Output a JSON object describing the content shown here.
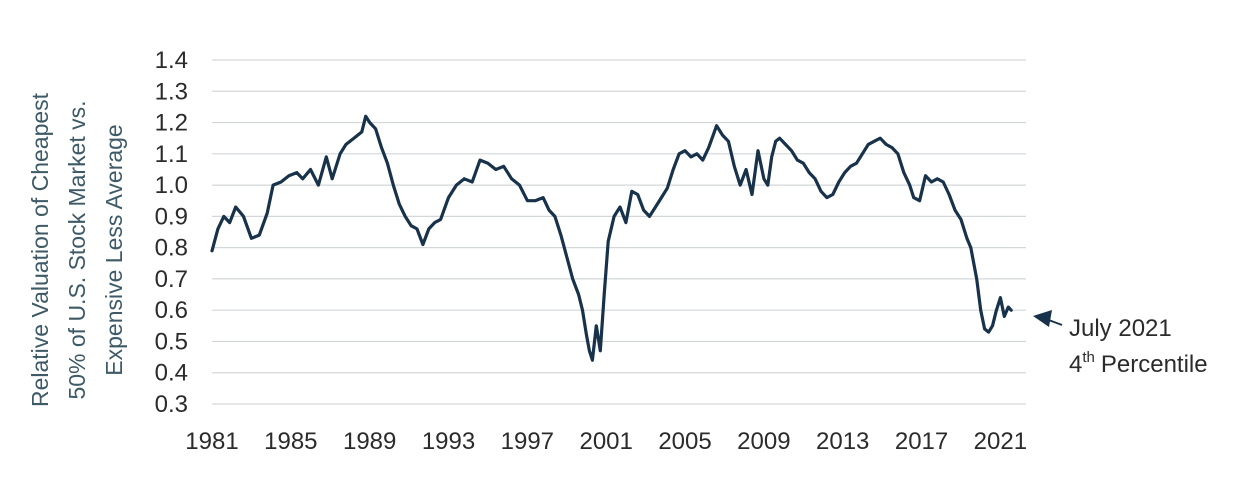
{
  "chart_data": {
    "type": "line",
    "ylabel_lines": [
      "Relative Valuation of Cheapest",
      "50% of U.S. Stock Market vs.",
      "Expensive Less Average"
    ],
    "ylim": [
      0.3,
      1.4
    ],
    "yticks": [
      0.3,
      0.4,
      0.5,
      0.6,
      0.7,
      0.8,
      0.9,
      1.0,
      1.1,
      1.2,
      1.3,
      1.4
    ],
    "ytick_labels": [
      "0.3",
      "0.4",
      "0.5",
      "0.6",
      "0.7",
      "0.8",
      "0.9",
      "1.0",
      "1.1",
      "1.2",
      "1.3",
      "1.4"
    ],
    "xlim": [
      1981,
      2022.3
    ],
    "xticks": [
      1981,
      1985,
      1989,
      1993,
      1997,
      2001,
      2005,
      2009,
      2013,
      2017,
      2021
    ],
    "xtick_labels": [
      "1981",
      "1985",
      "1989",
      "1993",
      "1997",
      "2001",
      "2005",
      "2009",
      "2013",
      "2017",
      "2021"
    ],
    "grid": true,
    "line_color": "#17324a",
    "series": [
      {
        "x": [
          1981.0,
          1981.3,
          1981.6,
          1981.9,
          1982.2,
          1982.6,
          1983.0,
          1983.4,
          1983.8,
          1984.1,
          1984.5,
          1984.9,
          1985.3,
          1985.6,
          1986.0,
          1986.4,
          1986.8,
          1987.1,
          1987.5,
          1987.8,
          1988.2,
          1988.6,
          1988.8,
          1989.0,
          1989.3,
          1989.6,
          1989.9,
          1990.2,
          1990.5,
          1990.8,
          1991.1,
          1991.4,
          1991.7,
          1992.0,
          1992.3,
          1992.6,
          1993.0,
          1993.4,
          1993.8,
          1994.2,
          1994.6,
          1995.0,
          1995.4,
          1995.8,
          1996.2,
          1996.6,
          1997.0,
          1997.4,
          1997.8,
          1998.1,
          1998.4,
          1998.7,
          1999.0,
          1999.3,
          1999.6,
          1999.8,
          2000.0,
          2000.15,
          2000.3,
          2000.5,
          2000.7,
          2000.9,
          2001.1,
          2001.4,
          2001.7,
          2002.0,
          2002.3,
          2002.6,
          2002.9,
          2003.2,
          2003.5,
          2003.8,
          2004.1,
          2004.4,
          2004.7,
          2005.0,
          2005.3,
          2005.6,
          2005.9,
          2006.2,
          2006.6,
          2006.9,
          2007.2,
          2007.5,
          2007.8,
          2008.1,
          2008.4,
          2008.7,
          2009.0,
          2009.2,
          2009.4,
          2009.6,
          2009.8,
          2010.1,
          2010.4,
          2010.7,
          2011.0,
          2011.3,
          2011.6,
          2011.9,
          2012.2,
          2012.5,
          2012.8,
          2013.1,
          2013.4,
          2013.7,
          2014.0,
          2014.3,
          2014.6,
          2014.9,
          2015.2,
          2015.5,
          2015.8,
          2016.1,
          2016.4,
          2016.6,
          2016.9,
          2017.2,
          2017.5,
          2017.8,
          2018.1,
          2018.4,
          2018.7,
          2019.0,
          2019.3,
          2019.5,
          2019.8,
          2020.0,
          2020.2,
          2020.4,
          2020.6,
          2020.8,
          2021.0,
          2021.2,
          2021.4,
          2021.55
        ],
        "values": [
          0.79,
          0.86,
          0.9,
          0.88,
          0.93,
          0.9,
          0.83,
          0.84,
          0.91,
          1.0,
          1.01,
          1.03,
          1.04,
          1.02,
          1.05,
          1.0,
          1.09,
          1.02,
          1.1,
          1.13,
          1.15,
          1.17,
          1.22,
          1.2,
          1.18,
          1.12,
          1.07,
          1.0,
          0.94,
          0.9,
          0.87,
          0.86,
          0.81,
          0.86,
          0.88,
          0.89,
          0.96,
          1.0,
          1.02,
          1.01,
          1.08,
          1.07,
          1.05,
          1.06,
          1.02,
          1.0,
          0.95,
          0.95,
          0.96,
          0.92,
          0.9,
          0.84,
          0.77,
          0.7,
          0.65,
          0.6,
          0.52,
          0.47,
          0.44,
          0.55,
          0.47,
          0.65,
          0.82,
          0.9,
          0.93,
          0.88,
          0.98,
          0.97,
          0.92,
          0.9,
          0.93,
          0.96,
          0.99,
          1.05,
          1.1,
          1.11,
          1.09,
          1.1,
          1.08,
          1.12,
          1.19,
          1.16,
          1.14,
          1.06,
          1.0,
          1.05,
          0.97,
          1.11,
          1.02,
          1.0,
          1.09,
          1.14,
          1.15,
          1.13,
          1.11,
          1.08,
          1.07,
          1.04,
          1.02,
          0.98,
          0.96,
          0.97,
          1.01,
          1.04,
          1.06,
          1.07,
          1.1,
          1.13,
          1.14,
          1.15,
          1.13,
          1.12,
          1.1,
          1.04,
          1.0,
          0.96,
          0.95,
          1.03,
          1.01,
          1.02,
          1.01,
          0.97,
          0.92,
          0.89,
          0.83,
          0.8,
          0.7,
          0.6,
          0.54,
          0.53,
          0.55,
          0.6,
          0.64,
          0.58,
          0.61,
          0.6
        ]
      }
    ],
    "annotation": {
      "line1": "July 2021",
      "line2_prefix": "4",
      "line2_sup": "th",
      "line2_suffix": "Percentile"
    }
  }
}
